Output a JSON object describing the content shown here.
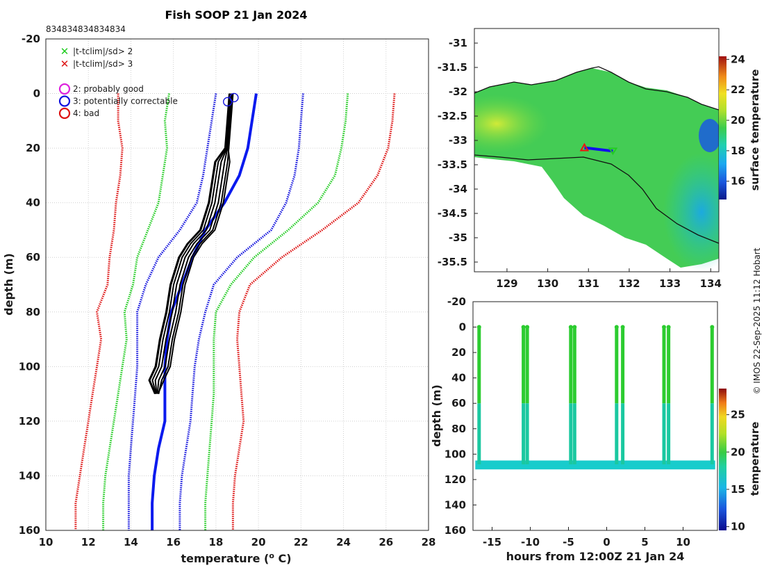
{
  "figure": {
    "title": "Fish SOOP 21 Jan 2024",
    "top_counts": [
      "834",
      "834",
      "834",
      "834",
      "834"
    ],
    "watermark": "© IMOS 22-Sep-2025 11:12 Hobart"
  },
  "chart_data": [
    {
      "id": "profile",
      "type": "line",
      "xlabel": "temperature (",
      "xlabel_sup": "o",
      "xlabel_tail": " C)",
      "ylabel": "depth (m)",
      "xlim": [
        10,
        28
      ],
      "ylim": [
        160,
        -20
      ],
      "xticks": [
        10,
        12,
        14,
        16,
        18,
        20,
        22,
        24,
        26,
        28
      ],
      "yticks": [
        -20,
        0,
        20,
        40,
        60,
        80,
        100,
        120,
        140,
        160
      ],
      "grid": true,
      "legend": [
        {
          "marker": "x",
          "color": "#22cc22",
          "label": "|t-tclim|/sd> 2"
        },
        {
          "marker": "x",
          "color": "#dd1111",
          "label": "|t-tclim|/sd> 3"
        },
        {
          "marker": "o",
          "color": "#dd22dd",
          "label": "2: probably good"
        },
        {
          "marker": "o",
          "color": "#1111dd",
          "label": "3: potentially correctable"
        },
        {
          "marker": "o",
          "color": "#dd1111",
          "label": "4: bad"
        }
      ],
      "series": [
        {
          "name": "red-left",
          "color": "#dd1111",
          "style": "dotted",
          "depth": [
            0,
            10,
            20,
            30,
            40,
            50,
            60,
            70,
            80,
            90,
            100,
            110,
            120,
            130,
            140,
            150,
            160
          ],
          "temp": [
            13.4,
            13.4,
            13.6,
            13.5,
            13.3,
            13.2,
            13.0,
            12.9,
            12.4,
            12.6,
            12.4,
            12.2,
            12.0,
            11.8,
            11.6,
            11.4,
            11.4
          ]
        },
        {
          "name": "green-left",
          "color": "#22cc22",
          "style": "dotted",
          "depth": [
            0,
            10,
            20,
            30,
            40,
            50,
            60,
            70,
            80,
            90,
            100,
            110,
            120,
            130,
            140,
            150,
            160
          ],
          "temp": [
            15.8,
            15.6,
            15.7,
            15.5,
            15.3,
            14.8,
            14.3,
            14.1,
            13.7,
            13.8,
            13.6,
            13.4,
            13.2,
            13.0,
            12.8,
            12.7,
            12.7
          ]
        },
        {
          "name": "blue-left",
          "color": "#1111dd",
          "style": "dotted",
          "depth": [
            0,
            10,
            20,
            30,
            40,
            50,
            60,
            70,
            80,
            90,
            100,
            110,
            120,
            130,
            140,
            150,
            160
          ],
          "temp": [
            18.0,
            17.8,
            17.6,
            17.4,
            17.1,
            16.3,
            15.3,
            14.7,
            14.3,
            14.3,
            14.3,
            14.2,
            14.1,
            14.0,
            13.9,
            13.9,
            13.9
          ]
        },
        {
          "name": "mean",
          "color": "#0a1aee",
          "style": "solid",
          "depth": [
            0,
            10,
            20,
            30,
            40,
            50,
            60,
            70,
            80,
            90,
            100,
            110,
            120,
            130,
            140,
            150,
            160
          ],
          "temp": [
            19.9,
            19.7,
            19.5,
            19.1,
            18.4,
            17.5,
            16.9,
            16.4,
            15.9,
            15.7,
            15.6,
            15.6,
            15.6,
            15.3,
            15.1,
            15.0,
            15.0
          ]
        },
        {
          "name": "blue-right",
          "color": "#1111dd",
          "style": "dotted",
          "depth": [
            0,
            10,
            20,
            30,
            40,
            50,
            60,
            70,
            80,
            90,
            100,
            110,
            120,
            130,
            140,
            150,
            160
          ],
          "temp": [
            22.1,
            22.0,
            21.9,
            21.7,
            21.3,
            20.6,
            19.0,
            17.9,
            17.5,
            17.2,
            17.0,
            16.9,
            16.8,
            16.6,
            16.4,
            16.3,
            16.3
          ]
        },
        {
          "name": "green-right",
          "color": "#22cc22",
          "style": "dotted",
          "depth": [
            0,
            10,
            20,
            30,
            40,
            50,
            60,
            70,
            80,
            90,
            100,
            110,
            120,
            130,
            140,
            150,
            160
          ],
          "temp": [
            24.2,
            24.1,
            23.9,
            23.6,
            22.8,
            21.4,
            19.8,
            18.7,
            18.0,
            17.9,
            17.9,
            17.9,
            17.8,
            17.7,
            17.6,
            17.5,
            17.5
          ]
        },
        {
          "name": "red-right",
          "color": "#dd1111",
          "style": "dotted",
          "depth": [
            0,
            10,
            20,
            30,
            40,
            50,
            60,
            70,
            80,
            90,
            100,
            110,
            120,
            130,
            140,
            150,
            160
          ],
          "temp": [
            26.4,
            26.3,
            26.1,
            25.6,
            24.7,
            23.0,
            21.1,
            19.6,
            19.1,
            19.0,
            19.1,
            19.2,
            19.3,
            19.1,
            18.9,
            18.8,
            18.8
          ]
        },
        {
          "name": "observed",
          "color": "#000000",
          "style": "solid",
          "depth": [
            0,
            10,
            20,
            25,
            30,
            40,
            50,
            55,
            60,
            65,
            70,
            80,
            90,
            100,
            105,
            110
          ],
          "temp": [
            18.7,
            18.6,
            18.5,
            18.2,
            18.1,
            17.9,
            17.5,
            16.9,
            16.5,
            16.3,
            16.1,
            15.9,
            15.6,
            15.4,
            15.1,
            15.2
          ]
        }
      ],
      "flags": [
        {
          "temp": 18.55,
          "depth": 3,
          "color": "#1111dd"
        },
        {
          "temp": 18.85,
          "depth": 1.5,
          "color": "#1111dd"
        }
      ]
    },
    {
      "id": "map",
      "type": "heatmap",
      "xlim": [
        128.2,
        134.2
      ],
      "ylim": [
        -35.7,
        -30.7
      ],
      "xticks": [
        129,
        130,
        131,
        132,
        133,
        134
      ],
      "yticks": [
        -31,
        -31.5,
        -32,
        -32.5,
        -33,
        -33.5,
        -34,
        -34.5,
        -35,
        -35.5
      ],
      "colorbar": {
        "label": "surface temperature",
        "range": [
          14.8,
          24.2
        ],
        "ticks": [
          16,
          18,
          20,
          22,
          24
        ]
      },
      "track": {
        "lon": [
          130.9,
          131.6
        ],
        "lat": [
          -33.15,
          -33.22
        ]
      }
    },
    {
      "id": "timeseries",
      "type": "scatter",
      "xlabel": "hours from 12:00Z 21 Jan 24",
      "ylabel": "depth (m)",
      "xlim": [
        -17.5,
        14.5
      ],
      "ylim": [
        160,
        -20
      ],
      "xticks": [
        -15,
        -10,
        -5,
        0,
        5,
        10
      ],
      "yticks": [
        -20,
        0,
        20,
        40,
        60,
        80,
        100,
        120,
        140,
        160
      ],
      "profile_times": [
        -16.7,
        -10.9,
        -10.4,
        -4.7,
        -4.2,
        1.3,
        2.1,
        7.5,
        8.1,
        13.8
      ],
      "bottom_depth": [
        108,
        110
      ],
      "colorbar": {
        "label": "temperature",
        "range": [
          9.5,
          28.5
        ],
        "ticks": [
          10,
          15,
          20,
          25
        ]
      }
    }
  ]
}
